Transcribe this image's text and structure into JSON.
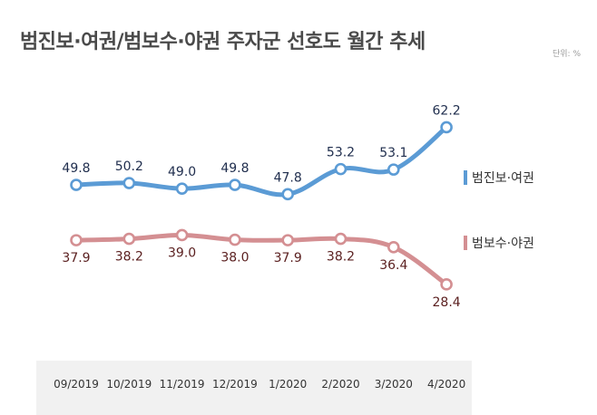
{
  "title": "범진보·여권/범보수·야권 주자군 선호도 월간 추세",
  "unit_label": "단위: %",
  "chart_data": {
    "type": "line",
    "title": "범진보·여권/범보수·야권 주자군 선호도 월간 추세",
    "categories": [
      "09/2019",
      "10/2019",
      "11/2019",
      "12/2019",
      "1/2020",
      "2/2020",
      "3/2020",
      "4/2020"
    ],
    "series": [
      {
        "name": "범진보·여권",
        "color": "#5b9bd5",
        "label_color": "#1f2d4d",
        "values": [
          49.8,
          50.2,
          49.0,
          49.8,
          47.8,
          53.2,
          53.1,
          62.2
        ]
      },
      {
        "name": "범보수·야권",
        "color": "#d48f92",
        "label_color": "#5a1f1f",
        "values": [
          37.9,
          38.2,
          39.0,
          38.0,
          37.9,
          38.2,
          36.4,
          28.4
        ]
      }
    ],
    "unit": "%",
    "legend_position": "right",
    "grid": false
  }
}
